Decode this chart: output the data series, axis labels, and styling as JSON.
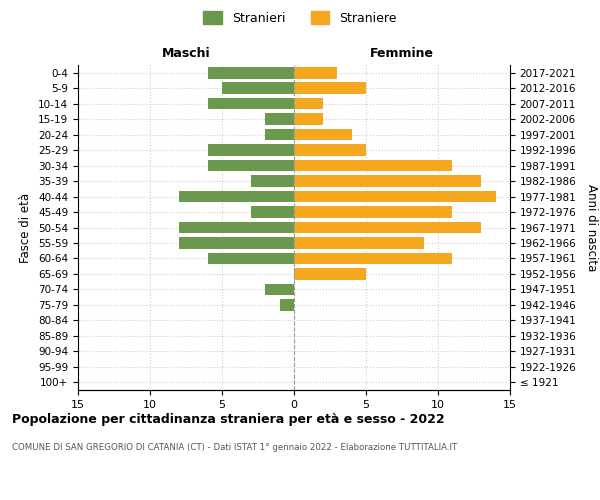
{
  "age_groups": [
    "100+",
    "95-99",
    "90-94",
    "85-89",
    "80-84",
    "75-79",
    "70-74",
    "65-69",
    "60-64",
    "55-59",
    "50-54",
    "45-49",
    "40-44",
    "35-39",
    "30-34",
    "25-29",
    "20-24",
    "15-19",
    "10-14",
    "5-9",
    "0-4"
  ],
  "birth_years": [
    "≤ 1921",
    "1922-1926",
    "1927-1931",
    "1932-1936",
    "1937-1941",
    "1942-1946",
    "1947-1951",
    "1952-1956",
    "1957-1961",
    "1962-1966",
    "1967-1971",
    "1972-1976",
    "1977-1981",
    "1982-1986",
    "1987-1991",
    "1992-1996",
    "1997-2001",
    "2002-2006",
    "2007-2011",
    "2012-2016",
    "2017-2021"
  ],
  "maschi": [
    0,
    0,
    0,
    0,
    0,
    1,
    2,
    0,
    6,
    8,
    8,
    3,
    8,
    3,
    6,
    6,
    2,
    2,
    6,
    5,
    6
  ],
  "femmine": [
    0,
    0,
    0,
    0,
    0,
    0,
    0,
    5,
    11,
    9,
    13,
    11,
    14,
    13,
    11,
    5,
    4,
    2,
    2,
    5,
    3
  ],
  "male_color": "#6a994e",
  "female_color": "#f4a820",
  "grid_color": "#cccccc",
  "center_line_color": "#999999",
  "title": "Popolazione per cittadinanza straniera per età e sesso - 2022",
  "subtitle": "COMUNE DI SAN GREGORIO DI CATANIA (CT) - Dati ISTAT 1° gennaio 2022 - Elaborazione TUTTITALIA.IT",
  "ylabel_left": "Fasce di età",
  "ylabel_right": "Anni di nascita",
  "xlabel_maschi": "Maschi",
  "xlabel_femmine": "Femmine",
  "legend_maschi": "Stranieri",
  "legend_femmine": "Straniere",
  "xlim": 15,
  "background_color": "#ffffff"
}
